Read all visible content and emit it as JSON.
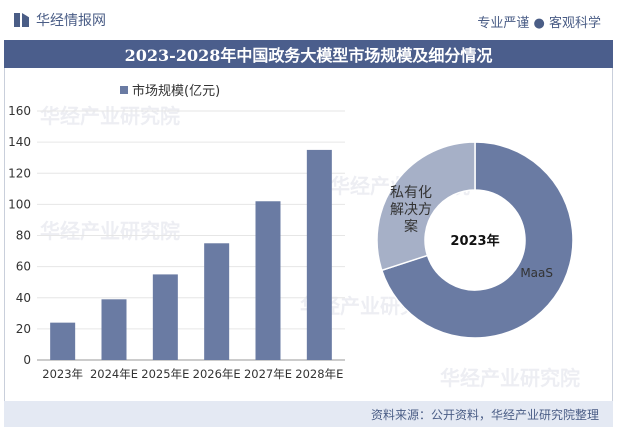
{
  "header": {
    "brand": "华经情报网",
    "slogan": "专业严谨 ● 客观科学"
  },
  "title": "2023-2028年中国政务大模型市场规模及细分情况",
  "footer": {
    "source": "资料来源：公开资料，华经产业研究院整理"
  },
  "watermark": "华经产业研究院",
  "colors": {
    "bar": "#6a7ba3",
    "donut_maas": "#6a7ba3",
    "donut_private": "#a6b0c7",
    "title_bg": "#4b5e8c"
  },
  "chart_data": [
    {
      "type": "bar",
      "categories": [
        "2023年",
        "2024年E",
        "2025年E",
        "2026年E",
        "2027年E",
        "2028年E"
      ],
      "series": [
        {
          "name": "市场规模(亿元)",
          "values": [
            24,
            39,
            55,
            75,
            102,
            135
          ]
        }
      ],
      "yticks": [
        0,
        20,
        40,
        60,
        80,
        100,
        120,
        140,
        160
      ],
      "ylim": [
        0,
        160
      ],
      "legend": "top-left"
    },
    {
      "type": "pie",
      "center_label": "2023年",
      "slices": [
        {
          "label": "MaaS",
          "value": 70
        },
        {
          "label": "私有化解决方案",
          "value": 30
        }
      ]
    }
  ]
}
